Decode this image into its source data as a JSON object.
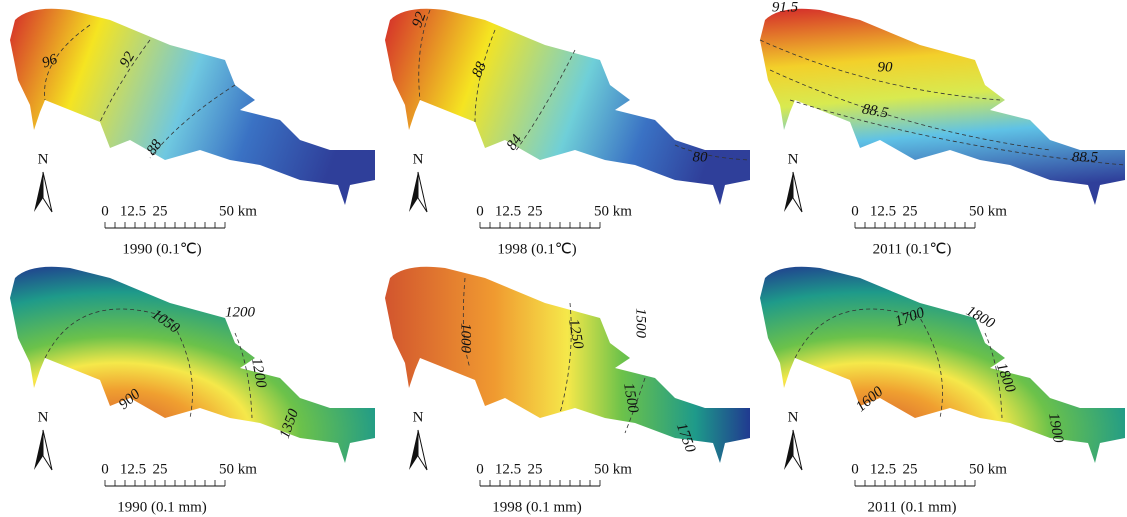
{
  "north": "N",
  "scale_labels": [
    "0",
    "12.5",
    "25",
    "50 km"
  ],
  "panels": [
    {
      "caption": "1990 (0.1℃)",
      "contours": [
        "96",
        "92",
        "88"
      ]
    },
    {
      "caption": "1998 (0.1℃)",
      "contours": [
        "92",
        "88",
        "84",
        "80"
      ]
    },
    {
      "caption": "2011 (0.1℃)",
      "contours": [
        "91.5",
        "90",
        "88.5",
        "88.5"
      ]
    },
    {
      "caption": "1990 (0.1 mm)",
      "contours": [
        "1050",
        "1200",
        "900",
        "1200",
        "1350"
      ]
    },
    {
      "caption": "1998 (0.1 mm)",
      "contours": [
        "1000",
        "1250",
        "1500",
        "1500",
        "1750"
      ]
    },
    {
      "caption": "2011 (0.1 mm)",
      "contours": [
        "1700",
        "1800",
        "1600",
        "1800",
        "1900"
      ]
    }
  ]
}
